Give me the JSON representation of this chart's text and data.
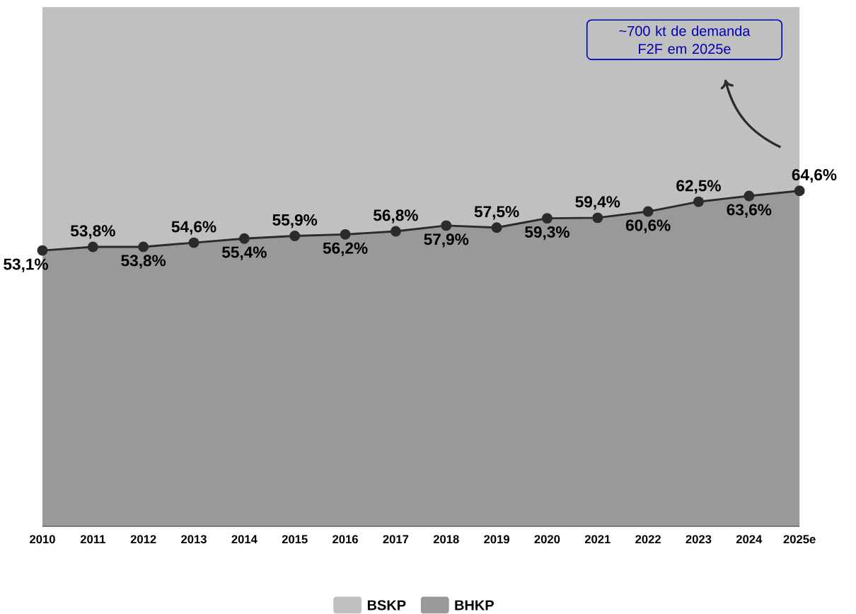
{
  "chart_data": {
    "type": "area",
    "stacked": true,
    "categories": [
      "2010",
      "2011",
      "2012",
      "2013",
      "2014",
      "2015",
      "2016",
      "2017",
      "2018",
      "2019",
      "2020",
      "2021",
      "2022",
      "2023",
      "2024",
      "2025e"
    ],
    "series": [
      {
        "name": "BHKP",
        "color": "#999999",
        "marker": "circle",
        "values": [
          53.1,
          53.8,
          53.8,
          54.6,
          55.4,
          55.9,
          56.2,
          56.8,
          57.9,
          57.5,
          59.3,
          59.4,
          60.6,
          62.5,
          63.6,
          64.6
        ],
        "value_labels": [
          "53,1%",
          "53,8%",
          "53,8%",
          "54,6%",
          "55,4%",
          "55,9%",
          "56,2%",
          "56,8%",
          "57,9%",
          "57,5%",
          "59,3%",
          "59,4%",
          "60,6%",
          "62,5%",
          "63,6%",
          "64,6%"
        ]
      },
      {
        "name": "BSKP",
        "color": "#c0c0c0",
        "values": [
          46.9,
          46.2,
          46.2,
          45.4,
          44.6,
          44.1,
          43.8,
          43.2,
          42.1,
          42.5,
          40.7,
          40.6,
          39.4,
          37.5,
          36.4,
          35.4
        ]
      }
    ],
    "tick_labels": "x",
    "legend": "bottom",
    "line_style": "solid",
    "annotations": [
      "~700 kt de demanda F2F em 2025e"
    ]
  }
}
